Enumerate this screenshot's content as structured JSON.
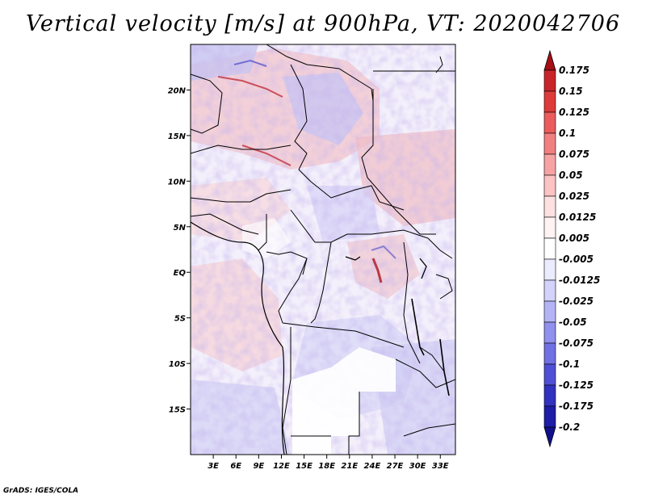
{
  "title": "Vertical velocity [m/s] at 900hPa, VT: 2020042706",
  "credit": "GrADS: IGES/COLA",
  "map": {
    "region": "Central Africa",
    "lat_labels": [
      "20N",
      "15N",
      "10N",
      "5N",
      "EQ",
      "5S",
      "10S",
      "15S"
    ],
    "lat_values": [
      20,
      15,
      10,
      5,
      0,
      -5,
      -10,
      -15
    ],
    "lon_labels": [
      "3E",
      "6E",
      "9E",
      "12E",
      "15E",
      "18E",
      "21E",
      "24E",
      "27E",
      "30E",
      "33E"
    ],
    "lon_values": [
      3,
      6,
      9,
      12,
      15,
      18,
      21,
      24,
      27,
      30,
      33
    ],
    "extent": {
      "lon_min": 0,
      "lon_max": 35,
      "lat_min": -20,
      "lat_max": 25
    }
  },
  "colorbar": {
    "labels": [
      "0.175",
      "0.15",
      "0.125",
      "0.1",
      "0.075",
      "0.05",
      "0.025",
      "0.0125",
      "0.005",
      "-0.005",
      "-0.0125",
      "-0.025",
      "-0.05",
      "-0.075",
      "-0.1",
      "-0.125",
      "-0.175",
      "-0.2"
    ],
    "colors": [
      "#a50f15",
      "#c8252a",
      "#de3b3b",
      "#eb5c5c",
      "#f28080",
      "#f7a3a3",
      "#fbc3c3",
      "#fde0e0",
      "#fff3f3",
      "#ffffff",
      "#ececff",
      "#d2d2fb",
      "#b3b3f5",
      "#9090ee",
      "#7171e3",
      "#5050d6",
      "#3232c0",
      "#1d1da8",
      "#10108c"
    ]
  }
}
